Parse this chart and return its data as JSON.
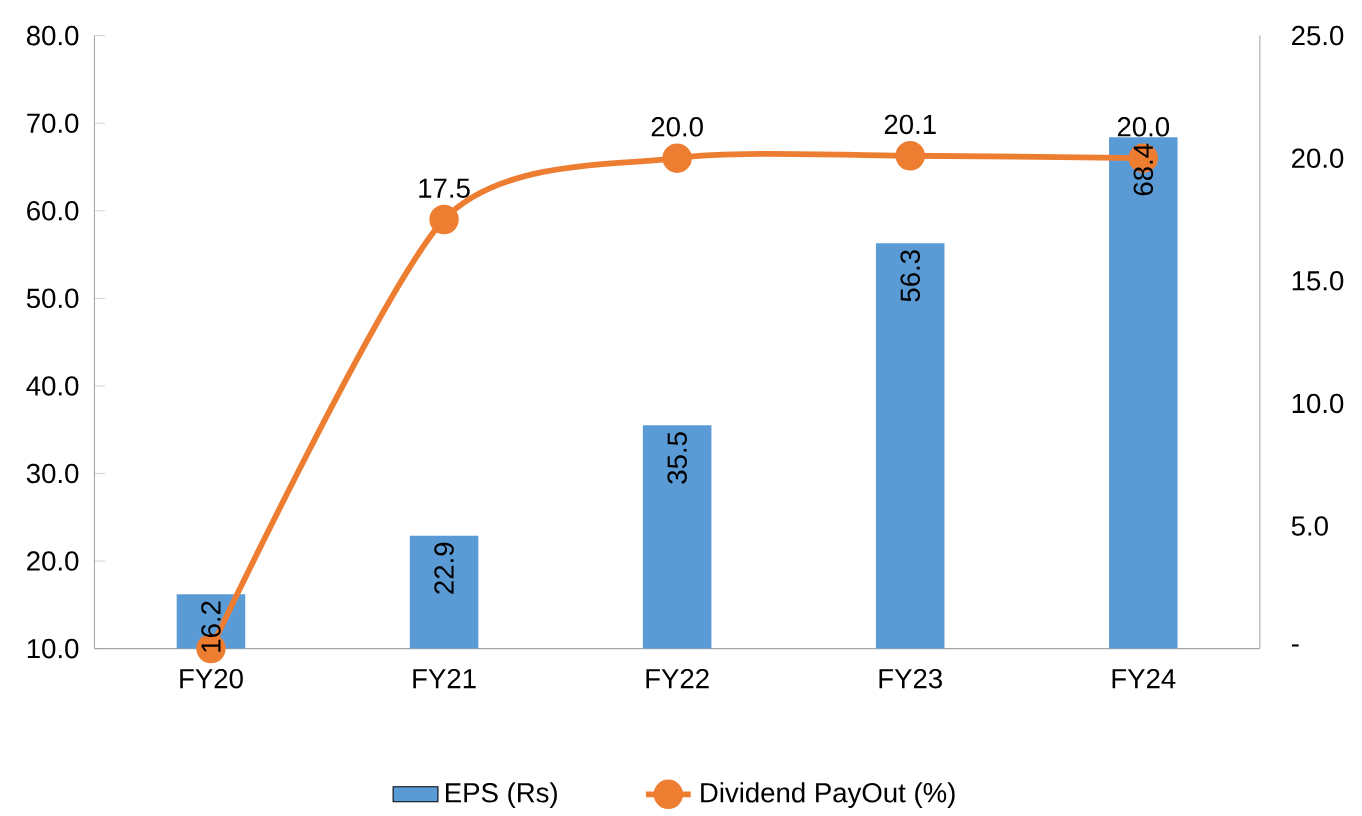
{
  "chart_data": {
    "type": "bar",
    "categories": [
      "FY20",
      "FY21",
      "FY22",
      "FY23",
      "FY24"
    ],
    "series": [
      {
        "name": "EPS (Rs)",
        "type": "bar",
        "color": "#5b9bd5",
        "values": [
          16.2,
          22.9,
          35.5,
          56.3,
          68.4
        ],
        "value_labels": [
          "16.2",
          "22.9",
          "35.5",
          "56.3",
          "68.4"
        ]
      },
      {
        "name": "Dividend PayOut (%)",
        "type": "line",
        "axis": "y2",
        "color": "#ed7d31",
        "marker": "circle",
        "values": [
          0,
          17.5,
          20.0,
          20.1,
          20.0
        ],
        "value_labels": [
          null,
          "17.5",
          "20.0",
          "20.1",
          "20.0"
        ]
      }
    ],
    "ylim": [
      10,
      80
    ],
    "yticks": [
      {
        "value": 10,
        "label": "10.0"
      },
      {
        "value": 20,
        "label": "20.0"
      },
      {
        "value": 30,
        "label": "30.0"
      },
      {
        "value": 40,
        "label": "40.0"
      },
      {
        "value": 50,
        "label": "50.0"
      },
      {
        "value": 60,
        "label": "60.0"
      },
      {
        "value": 70,
        "label": "70.0"
      },
      {
        "value": 80,
        "label": "80.0"
      }
    ],
    "y2lim": [
      0,
      25
    ],
    "y2ticks": [
      {
        "value": 0,
        "label": "-"
      },
      {
        "value": 5,
        "label": "5.0"
      },
      {
        "value": 10,
        "label": "10.0"
      },
      {
        "value": 15,
        "label": "15.0"
      },
      {
        "value": 20,
        "label": "20.0"
      },
      {
        "value": 25,
        "label": "25.0"
      }
    ],
    "legend": "bottom",
    "grid": false
  }
}
